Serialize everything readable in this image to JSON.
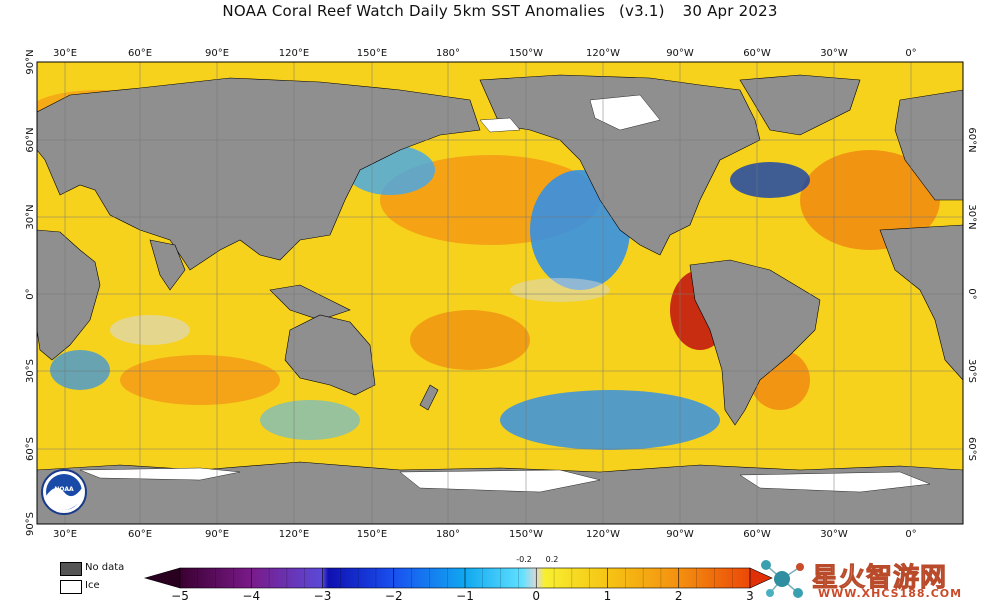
{
  "header": {
    "title": "NOAA Coral Reef Watch Daily 5km SST Anomalies",
    "version": "(v3.1)",
    "date": "30 Apr 2023"
  },
  "map": {
    "top_lon_labels": [
      "30°E",
      "60°E",
      "90°E",
      "120°E",
      "150°E",
      "180°",
      "150°W",
      "120°W",
      "90°W",
      "60°W",
      "30°W",
      "0°"
    ],
    "bottom_lon_labels": [
      "30°E",
      "60°E",
      "90°E",
      "120°E",
      "150°E",
      "180°",
      "150°W",
      "120°W",
      "90°W",
      "60°W",
      "30°W",
      "0°"
    ],
    "left_lat_labels": [
      "90°N",
      "60°N",
      "30°N",
      "0°",
      "30°S",
      "60°S",
      "90°S"
    ],
    "right_lat_labels": [
      "60°N",
      "30°N",
      "0°",
      "30°S",
      "60°S"
    ],
    "land_color": "#8f8f8f",
    "ocean_base_color": "#f7d21c",
    "logo": "noaa-logo"
  },
  "legend": {
    "no_data_label": "No data",
    "ice_label": "Ice",
    "no_data_color": "#555555",
    "ice_color": "#ffffff",
    "colorbar_ticks": [
      "−5",
      "−4",
      "−3",
      "−2",
      "−1",
      "0",
      "1",
      "2",
      "3"
    ],
    "inner_ticks": [
      "-0.2",
      "0.2"
    ]
  },
  "watermark": {
    "text": "星火智游网",
    "url": "WWW.XHCS188.COM",
    "icon": "network-nodes-icon"
  }
}
